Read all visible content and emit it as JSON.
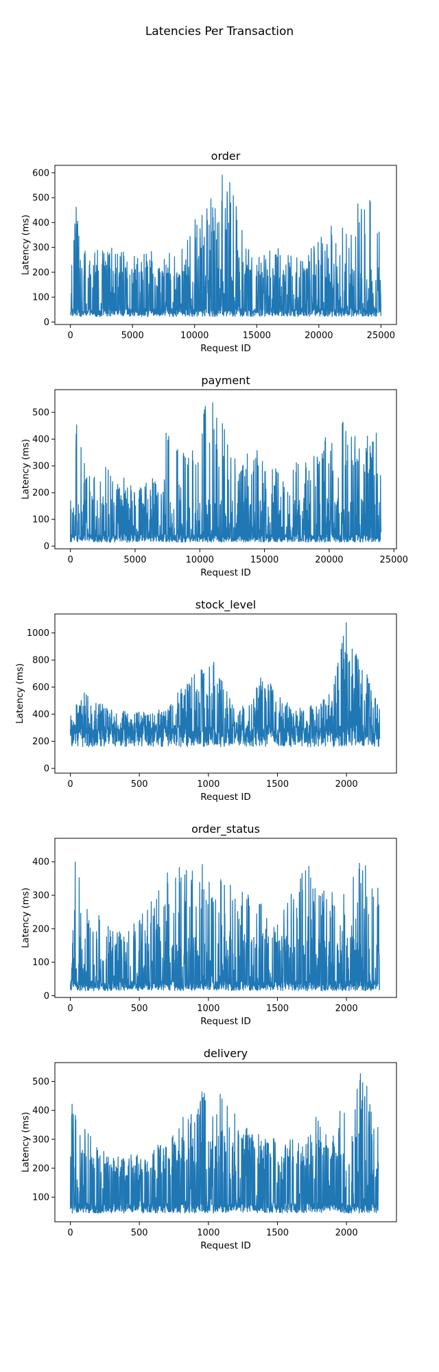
{
  "figure": {
    "title": "Latencies Per Transaction"
  },
  "style": {
    "line_color": "#1f77b4"
  },
  "chart_data": [
    {
      "type": "line",
      "title": "order",
      "xlabel": "Request ID",
      "ylabel": "Latency (ms)",
      "xlim": [
        -1250,
        26250
      ],
      "ylim": [
        -10,
        630
      ],
      "xticks": [
        0,
        5000,
        10000,
        15000,
        20000,
        25000
      ],
      "yticks": [
        0,
        100,
        200,
        300,
        400,
        500,
        600
      ],
      "x_range": [
        0,
        25000
      ],
      "base_range": [
        22,
        55
      ],
      "envelope": [
        [
          0,
          250
        ],
        [
          500,
          480
        ],
        [
          1000,
          290
        ],
        [
          3000,
          310
        ],
        [
          5000,
          270
        ],
        [
          7000,
          290
        ],
        [
          9000,
          300
        ],
        [
          10000,
          420
        ],
        [
          11000,
          470
        ],
        [
          12000,
          605
        ],
        [
          13000,
          570
        ],
        [
          14000,
          330
        ],
        [
          15000,
          290
        ],
        [
          17000,
          300
        ],
        [
          19000,
          320
        ],
        [
          20000,
          330
        ],
        [
          21000,
          390
        ],
        [
          22000,
          380
        ],
        [
          23000,
          550
        ],
        [
          24000,
          520
        ],
        [
          25000,
          500
        ]
      ],
      "grid": false,
      "legend": "none"
    },
    {
      "type": "line",
      "title": "payment",
      "xlabel": "Request ID",
      "ylabel": "Latency (ms)",
      "xlim": [
        -1200,
        25200
      ],
      "ylim": [
        -10,
        585
      ],
      "xticks": [
        0,
        5000,
        10000,
        15000,
        20000,
        25000
      ],
      "yticks": [
        0,
        100,
        200,
        300,
        400,
        500
      ],
      "x_range": [
        0,
        24000
      ],
      "base_range": [
        15,
        45
      ],
      "envelope": [
        [
          0,
          200
        ],
        [
          500,
          490
        ],
        [
          1000,
          320
        ],
        [
          3000,
          300
        ],
        [
          5000,
          240
        ],
        [
          7000,
          260
        ],
        [
          7500,
          480
        ],
        [
          9000,
          320
        ],
        [
          10000,
          540
        ],
        [
          11000,
          545
        ],
        [
          12000,
          470
        ],
        [
          13000,
          280
        ],
        [
          14000,
          420
        ],
        [
          15000,
          300
        ],
        [
          17000,
          310
        ],
        [
          18000,
          340
        ],
        [
          20000,
          420
        ],
        [
          21000,
          460
        ],
        [
          21500,
          565
        ],
        [
          22000,
          460
        ],
        [
          23000,
          470
        ],
        [
          24000,
          400
        ]
      ],
      "grid": false,
      "legend": "none"
    },
    {
      "type": "line",
      "title": "stock_level",
      "xlabel": "Request ID",
      "ylabel": "Latency (ms)",
      "xlim": [
        -112,
        2362
      ],
      "ylim": [
        -35,
        1140
      ],
      "xticks": [
        0,
        500,
        1000,
        1500,
        2000
      ],
      "yticks": [
        0,
        200,
        400,
        600,
        800,
        1000
      ],
      "x_range": [
        0,
        2240
      ],
      "base_range": [
        160,
        320
      ],
      "envelope": [
        [
          0,
          480
        ],
        [
          100,
          560
        ],
        [
          300,
          430
        ],
        [
          500,
          420
        ],
        [
          700,
          450
        ],
        [
          900,
          750
        ],
        [
          1000,
          840
        ],
        [
          1100,
          700
        ],
        [
          1200,
          400
        ],
        [
          1300,
          550
        ],
        [
          1400,
          700
        ],
        [
          1600,
          450
        ],
        [
          1800,
          480
        ],
        [
          1900,
          600
        ],
        [
          2000,
          1090
        ],
        [
          2100,
          830
        ],
        [
          2240,
          450
        ]
      ],
      "grid": false,
      "legend": "none"
    },
    {
      "type": "line",
      "title": "order_status",
      "xlabel": "Request ID",
      "ylabel": "Latency (ms)",
      "xlim": [
        -112,
        2362
      ],
      "ylim": [
        -5,
        470
      ],
      "xticks": [
        0,
        500,
        1000,
        1500,
        2000
      ],
      "yticks": [
        0,
        100,
        200,
        300,
        400
      ],
      "x_range": [
        0,
        2240
      ],
      "base_range": [
        15,
        45
      ],
      "envelope": [
        [
          0,
          130
        ],
        [
          30,
          450
        ],
        [
          100,
          260
        ],
        [
          200,
          280
        ],
        [
          300,
          200
        ],
        [
          500,
          230
        ],
        [
          700,
          390
        ],
        [
          900,
          380
        ],
        [
          1000,
          455
        ],
        [
          1100,
          350
        ],
        [
          1300,
          300
        ],
        [
          1500,
          240
        ],
        [
          1700,
          395
        ],
        [
          1900,
          340
        ],
        [
          2000,
          300
        ],
        [
          2100,
          440
        ],
        [
          2200,
          390
        ],
        [
          2240,
          290
        ]
      ],
      "grid": false,
      "legend": "none"
    },
    {
      "type": "line",
      "title": "delivery",
      "xlabel": "Request ID",
      "ylabel": "Latency (ms)",
      "xlim": [
        -112,
        2362
      ],
      "ylim": [
        15,
        565
      ],
      "xticks": [
        0,
        500,
        1000,
        1500,
        2000
      ],
      "yticks": [
        100,
        200,
        300,
        400,
        500
      ],
      "x_range": [
        0,
        2230
      ],
      "base_range": [
        45,
        80
      ],
      "envelope": [
        [
          0,
          440
        ],
        [
          100,
          340
        ],
        [
          300,
          240
        ],
        [
          500,
          250
        ],
        [
          700,
          300
        ],
        [
          900,
          485
        ],
        [
          1000,
          450
        ],
        [
          1100,
          470
        ],
        [
          1300,
          330
        ],
        [
          1500,
          300
        ],
        [
          1700,
          300
        ],
        [
          1800,
          400
        ],
        [
          1900,
          330
        ],
        [
          2000,
          470
        ],
        [
          2100,
          540
        ],
        [
          2230,
          450
        ]
      ],
      "grid": false,
      "legend": "none"
    }
  ]
}
